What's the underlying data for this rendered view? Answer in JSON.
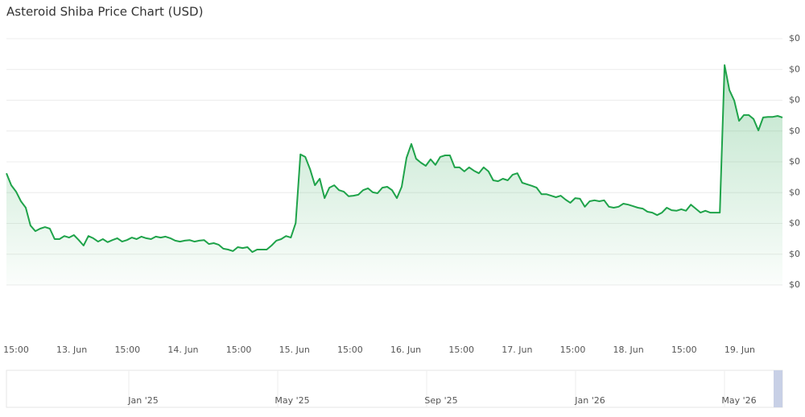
{
  "chart_data": {
    "type": "line",
    "title": "Asteroid Shiba Price Chart (USD)",
    "series": [
      {
        "name": "Price",
        "color": "#1fa34a",
        "values": [
          3.63e-09,
          3.24e-09,
          3.03e-09,
          2.72e-09,
          2.51e-09,
          1.93e-09,
          1.75e-09,
          1.83e-09,
          1.88e-09,
          1.83e-09,
          1.49e-09,
          1.49e-09,
          1.59e-09,
          1.54e-09,
          1.62e-09,
          1.46e-09,
          1.28e-09,
          1.59e-09,
          1.52e-09,
          1.41e-09,
          1.49e-09,
          1.39e-09,
          1.46e-09,
          1.52e-09,
          1.41e-09,
          1.46e-09,
          1.54e-09,
          1.49e-09,
          1.57e-09,
          1.52e-09,
          1.49e-09,
          1.57e-09,
          1.54e-09,
          1.57e-09,
          1.52e-09,
          1.44e-09,
          1.41e-09,
          1.44e-09,
          1.46e-09,
          1.41e-09,
          1.44e-09,
          1.46e-09,
          1.33e-09,
          1.36e-09,
          1.31e-09,
          1.18e-09,
          1.15e-09,
          1.1e-09,
          1.23e-09,
          1.2e-09,
          1.23e-09,
          1.07e-09,
          1.15e-09,
          1.15e-09,
          1.15e-09,
          1.28e-09,
          1.44e-09,
          1.49e-09,
          1.59e-09,
          1.54e-09,
          2.01e-09,
          4.24e-09,
          4.16e-09,
          3.76e-09,
          3.24e-09,
          3.45e-09,
          2.82e-09,
          3.16e-09,
          3.24e-09,
          3.08e-09,
          3.03e-09,
          2.88e-09,
          2.9e-09,
          2.93e-09,
          3.08e-09,
          3.14e-09,
          3.01e-09,
          2.98e-09,
          3.16e-09,
          3.19e-09,
          3.08e-09,
          2.82e-09,
          3.19e-09,
          4.13e-09,
          4.58e-09,
          4.1e-09,
          3.97e-09,
          3.87e-09,
          4.08e-09,
          3.9e-09,
          4.16e-09,
          4.21e-09,
          4.21e-09,
          3.82e-09,
          3.82e-09,
          3.69e-09,
          3.82e-09,
          3.71e-09,
          3.63e-09,
          3.82e-09,
          3.69e-09,
          3.4e-09,
          3.37e-09,
          3.45e-09,
          3.4e-09,
          3.58e-09,
          3.63e-09,
          3.32e-09,
          3.27e-09,
          3.22e-09,
          3.16e-09,
          2.95e-09,
          2.95e-09,
          2.9e-09,
          2.85e-09,
          2.9e-09,
          2.77e-09,
          2.67e-09,
          2.82e-09,
          2.8e-09,
          2.54e-09,
          2.72e-09,
          2.75e-09,
          2.72e-09,
          2.75e-09,
          2.54e-09,
          2.51e-09,
          2.54e-09,
          2.64e-09,
          2.61e-09,
          2.56e-09,
          2.51e-09,
          2.48e-09,
          2.38e-09,
          2.35e-09,
          2.27e-09,
          2.35e-09,
          2.51e-09,
          2.43e-09,
          2.41e-09,
          2.46e-09,
          2.41e-09,
          2.61e-09,
          2.48e-09,
          2.35e-09,
          2.41e-09,
          2.35e-09,
          2.35e-09,
          2.35e-09,
          7.14e-09,
          6.33e-09,
          5.99e-09,
          5.33e-09,
          5.52e-09,
          5.52e-09,
          5.39e-09,
          5.02e-09,
          5.44e-09,
          5.46e-09,
          5.46e-09,
          5.49e-09,
          5.44e-09
        ]
      }
    ],
    "xtick_labels": [
      "15:00",
      "13. Jun",
      "15:00",
      "14. Jun",
      "15:00",
      "15. Jun",
      "15:00",
      "16. Jun",
      "15:00",
      "17. Jun",
      "15:00",
      "18. Jun",
      "15:00",
      "19. Jun"
    ],
    "ylim": [
      0,
      8e-09
    ],
    "yticks": [
      {
        "value": 0,
        "label": "$0"
      },
      {
        "value": 1e-09,
        "label": "$0"
      },
      {
        "value": 2e-09,
        "label": "$0"
      },
      {
        "value": 3e-09,
        "label": "$0"
      },
      {
        "value": 4e-09,
        "label": "$0"
      },
      {
        "value": 5e-09,
        "label": "$0"
      },
      {
        "value": 6e-09,
        "label": "$0"
      },
      {
        "value": 7e-09,
        "label": "$0"
      },
      {
        "value": 8e-09,
        "label": "$0"
      }
    ],
    "grid": true,
    "navigator_labels": [
      "Jan '25",
      "May '25",
      "Sep '25",
      "Jan '26",
      "May '26"
    ]
  }
}
